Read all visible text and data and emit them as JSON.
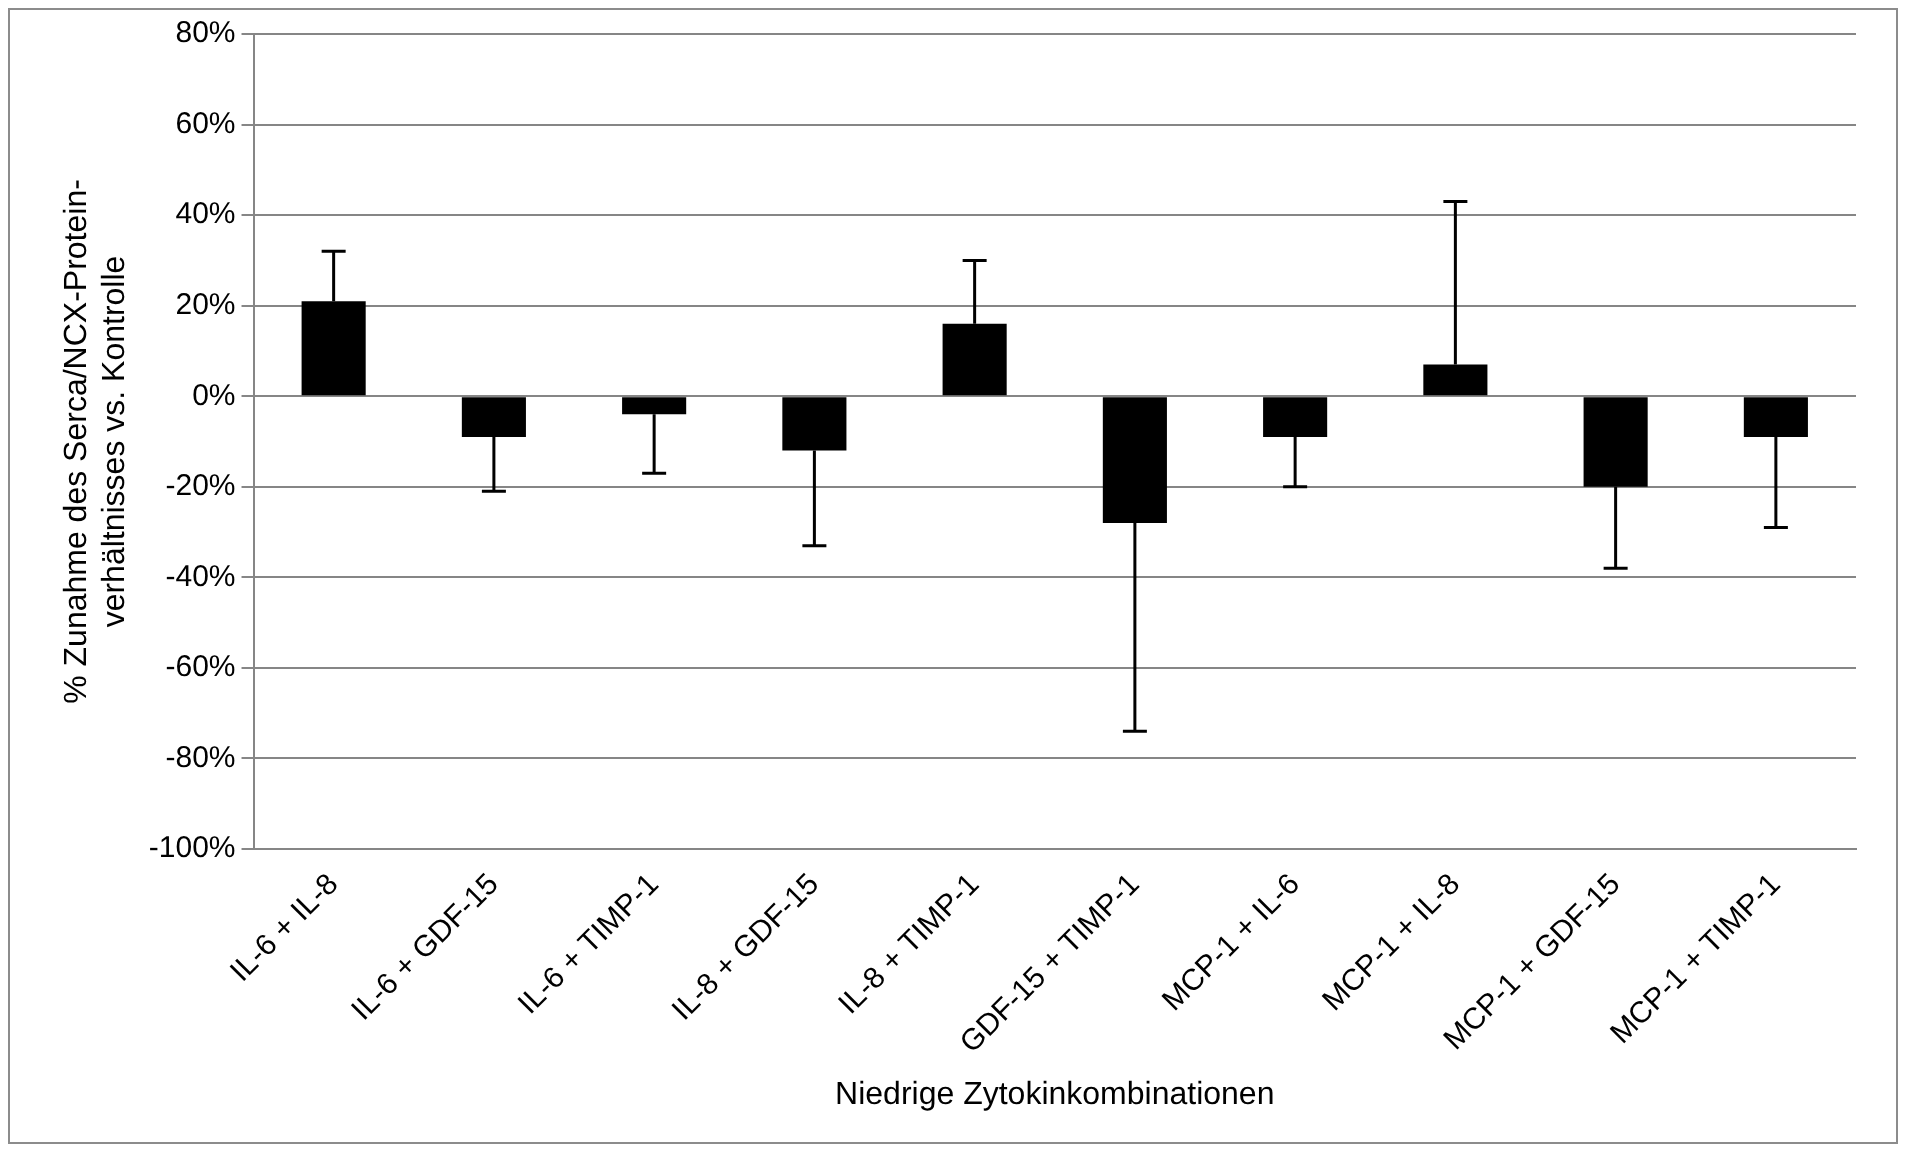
{
  "chart_data": {
    "type": "bar",
    "xlabel": "Niedrige Zytokinkombinationen",
    "ylabel": "% Zunahme des Serca/NCX-Protein-\nverhältnisses vs. Kontrolle",
    "categories": [
      "IL-6 + IL-8",
      "IL-6 + GDF-15",
      "IL-6 + TIMP-1",
      "IL-8 + GDF-15",
      "IL-8 + TIMP-1",
      "GDF-15 + TIMP-1",
      "MCP-1 + IL-6",
      "MCP-1 + IL-8",
      "MCP-1 + GDF-15",
      "MCP-1 + TIMP-1"
    ],
    "values": [
      21,
      -9,
      -4,
      -12,
      16,
      -28,
      -9,
      7,
      -20,
      -9
    ],
    "errors": [
      [
        21,
        32
      ],
      [
        -21,
        -9
      ],
      [
        -17,
        -4
      ],
      [
        -33,
        -12
      ],
      [
        16,
        30
      ],
      [
        -74,
        -28
      ],
      [
        -20,
        -9
      ],
      [
        7,
        43
      ],
      [
        -38,
        -20
      ],
      [
        -29,
        -9
      ]
    ],
    "color": "#000000",
    "ylim": [
      -100,
      80
    ],
    "yticks": [
      {
        "value": -100,
        "label": "-100%"
      },
      {
        "value": -80,
        "label": "-80%"
      },
      {
        "value": -60,
        "label": "-60%"
      },
      {
        "value": -40,
        "label": "-40%"
      },
      {
        "value": -20,
        "label": "-20%"
      },
      {
        "value": 0,
        "label": "0%"
      },
      {
        "value": 20,
        "label": "20%"
      },
      {
        "value": 40,
        "label": "40%"
      },
      {
        "value": 60,
        "label": "60%"
      },
      {
        "value": 80,
        "label": "80%"
      }
    ],
    "grid": "y"
  }
}
